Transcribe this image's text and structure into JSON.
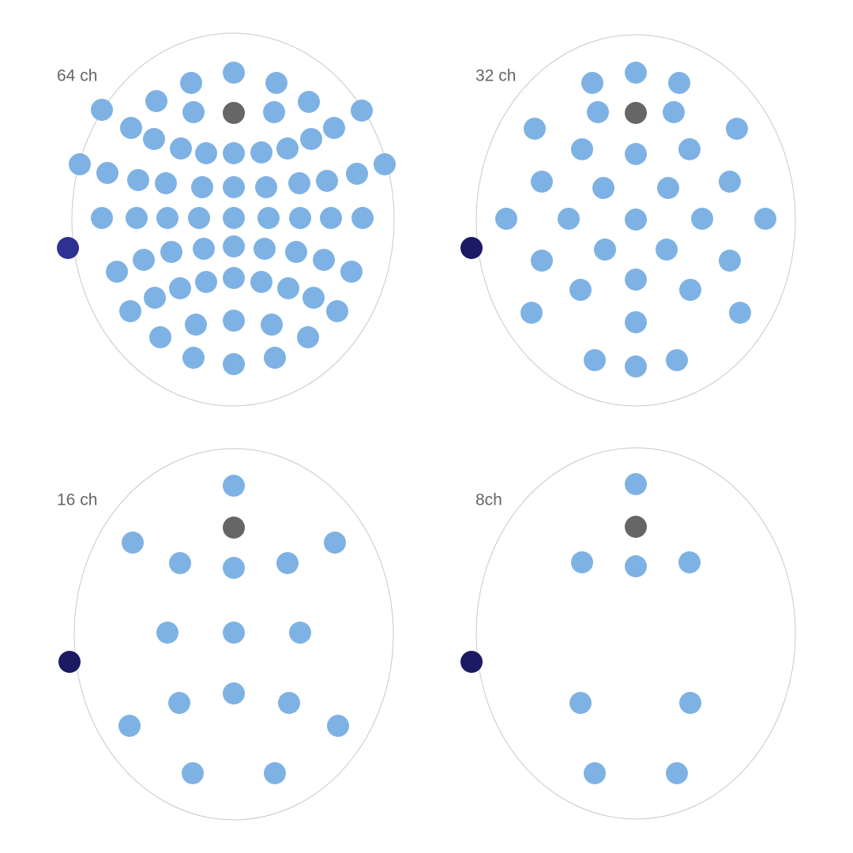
{
  "panels": [
    {
      "label": "64 ch"
    },
    {
      "label": "32 ch"
    },
    {
      "label": "16 ch"
    },
    {
      "label": "8ch"
    }
  ]
}
